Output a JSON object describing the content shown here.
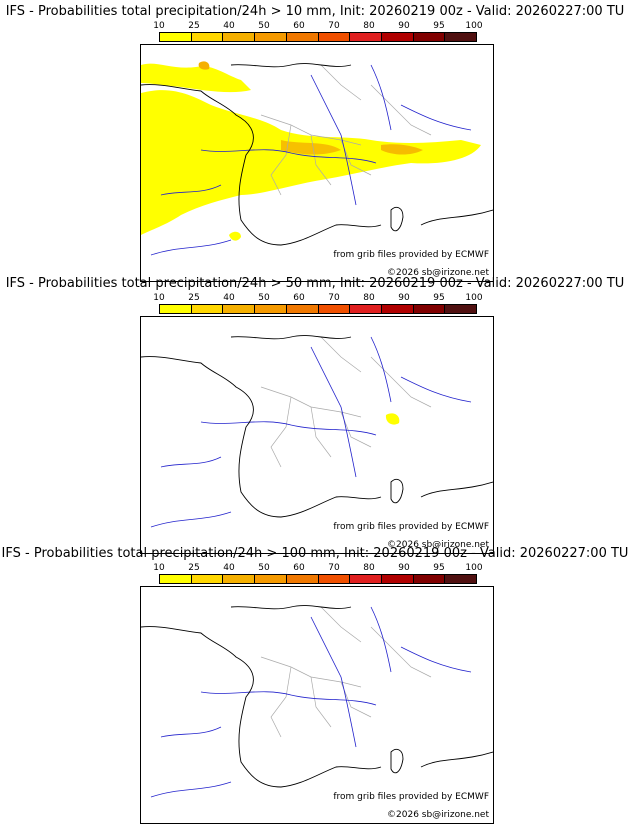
{
  "colorbar": {
    "ticks": [
      "10",
      "25",
      "40",
      "50",
      "60",
      "70",
      "80",
      "90",
      "95",
      "100"
    ],
    "colors": [
      "#ffff00",
      "#ffd700",
      "#f5b000",
      "#f59a00",
      "#f07800",
      "#f05000",
      "#e02020",
      "#b00000",
      "#800000",
      "#501010"
    ]
  },
  "map_colors": {
    "coast": "#000000",
    "rivers": "#2222cc",
    "borders": "#aaaaaa"
  },
  "credits": {
    "source": "from grib files provided by ECMWF",
    "copyright": "©2026 sb@irizone.net"
  },
  "panels": [
    {
      "title": "IFS - Probabilities total precipitation/24h > 10 mm, Init: 20260219 00z - Valid: 20260227:00 TU"
    },
    {
      "title": "IFS - Probabilities total precipitation/24h > 50 mm, Init: 20260219 00z - Valid: 20260227:00 TU"
    },
    {
      "title": "IFS - Probabilities total precipitation/24h > 100 mm, Init: 20260219 00z - Valid: 20260227:00 TU"
    }
  ]
}
